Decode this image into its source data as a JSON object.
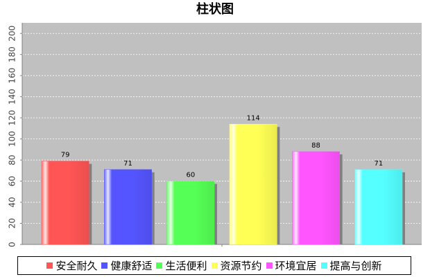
{
  "chart_data": {
    "type": "bar",
    "title": "柱状图",
    "categories": [
      "安全耐久",
      "健康舒适",
      "生活便利",
      "资源节约",
      "环境宜居",
      "提高与创新"
    ],
    "values": [
      79,
      71,
      60,
      114,
      88,
      71
    ],
    "colors": [
      "#ff5555",
      "#5555ff",
      "#55ff55",
      "#ffff55",
      "#ff55ff",
      "#55ffff"
    ],
    "ylim": [
      0,
      210
    ],
    "yticks": [
      0,
      20,
      40,
      60,
      80,
      100,
      120,
      140,
      160,
      180,
      200
    ],
    "grid": true,
    "background": "#c0c0c0",
    "legend_position": "bottom",
    "xlabel": "",
    "ylabel": ""
  }
}
